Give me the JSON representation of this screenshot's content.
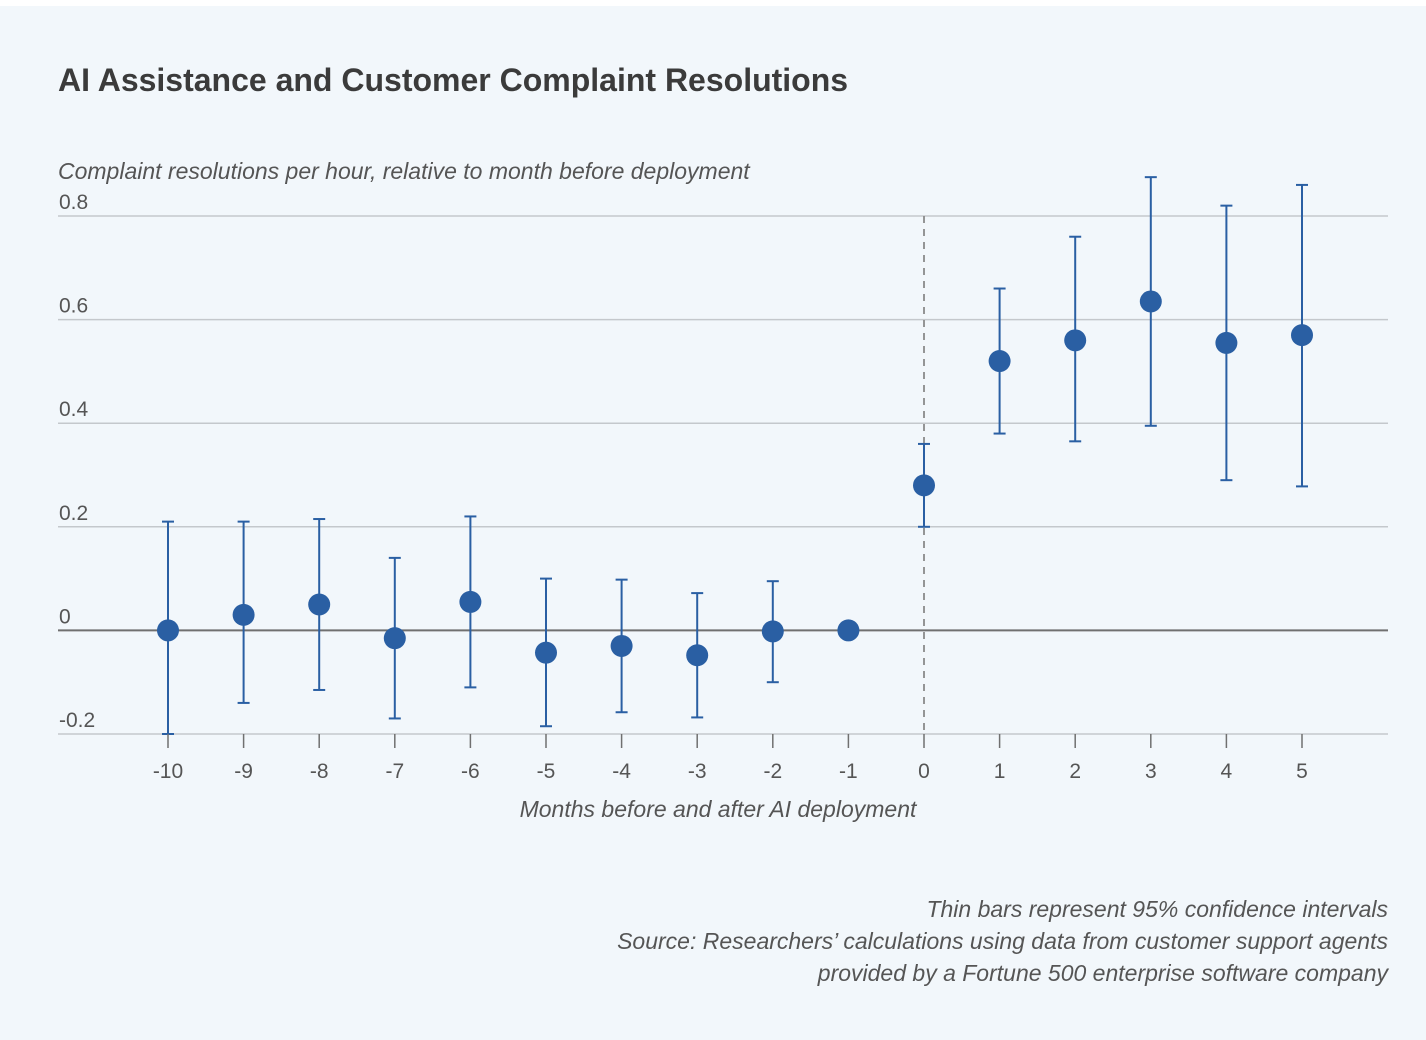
{
  "title": "AI Assistance and Customer Complaint Resolutions",
  "footer": {
    "note": "Thin bars represent 95% confidence intervals",
    "source_line1": "Source: Researchers’ calculations using data from customer support agents",
    "source_line2": "provided by a Fortune 500 enterprise software company"
  },
  "chart_data": {
    "type": "scatter",
    "title": "AI Assistance and Customer Complaint Resolutions",
    "ylabel": "Complaint resolutions per hour, relative to month before deployment",
    "xlabel": "Months before and after AI deployment",
    "ylim": [
      -0.2,
      0.8
    ],
    "yticks": [
      -0.2,
      0,
      0.2,
      0.4,
      0.6,
      0.8
    ],
    "ytick_labels": [
      "-0.2",
      "0",
      "0.2",
      "0.4",
      "0.6",
      "0.8"
    ],
    "x": [
      -10,
      -9,
      -8,
      -7,
      -6,
      -5,
      -4,
      -3,
      -2,
      -1,
      0,
      1,
      2,
      3,
      4,
      5
    ],
    "x_labels": [
      "-10",
      "-9",
      "-8",
      "-7",
      "-6",
      "-5",
      "-4",
      "-3",
      "-2",
      "-1",
      "0",
      "1",
      "2",
      "3",
      "4",
      "5"
    ],
    "y": [
      0.0,
      0.03,
      0.05,
      -0.015,
      0.055,
      -0.043,
      -0.03,
      -0.048,
      -0.002,
      0.0,
      0.28,
      0.52,
      0.56,
      0.635,
      0.555,
      0.57
    ],
    "lower": [
      -0.2,
      -0.14,
      -0.115,
      -0.17,
      -0.11,
      -0.185,
      -0.158,
      -0.168,
      -0.1,
      null,
      0.2,
      0.38,
      0.365,
      0.395,
      0.29,
      0.278
    ],
    "upper": [
      0.21,
      0.21,
      0.215,
      0.14,
      0.22,
      0.1,
      0.098,
      0.072,
      0.095,
      null,
      0.36,
      0.66,
      0.76,
      0.875,
      0.82,
      0.86
    ],
    "reference_line_x": 0,
    "grid": true,
    "marker_color": "#2a5fa3",
    "grid_color": "#c4c8cc",
    "zero_line_color": "#707070",
    "ref_line_color": "#8a8a8a"
  }
}
